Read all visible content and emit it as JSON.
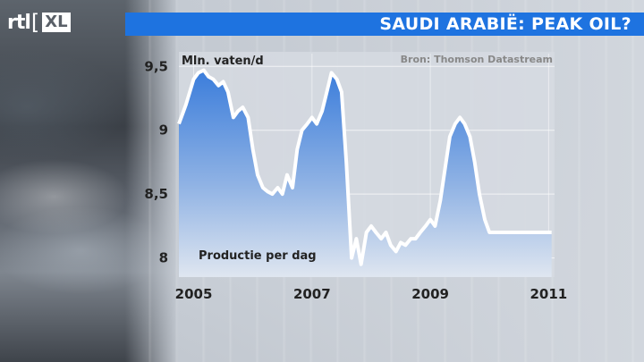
{
  "logo": {
    "brand": "rtl",
    "bracket": "[",
    "suffix": "XL"
  },
  "header": {
    "title": "SAUDI ARABIË: PEAK OIL?"
  },
  "chart_data": {
    "type": "area",
    "ylabel": "Mln. vaten/d",
    "source": "Bron: Thomson Datastream",
    "annotation": "Productie per dag",
    "y_ticks": [
      "9,5",
      "9",
      "8,5",
      "8"
    ],
    "x_ticks": [
      "2005",
      "2007",
      "2009",
      "2011"
    ],
    "ylim": [
      7.85,
      9.6
    ],
    "xlim": [
      2004.75,
      2011.1
    ],
    "grid": true,
    "colors": {
      "fill_top": "#4a86e0",
      "fill_bottom": "#e6ecf4",
      "line": "#ffffff",
      "grid": "#ffffff"
    },
    "series": [
      {
        "x": [
          2004.75,
          2004.87,
          2005.0,
          2005.08,
          2005.17,
          2005.25,
          2005.33,
          2005.42,
          2005.5,
          2005.58,
          2005.67,
          2005.75,
          2005.83,
          2005.92,
          2006.0,
          2006.08,
          2006.17,
          2006.25,
          2006.33,
          2006.42,
          2006.5,
          2006.58,
          2006.67,
          2006.75,
          2006.83,
          2006.92,
          2007.0,
          2007.08,
          2007.17,
          2007.25,
          2007.33,
          2007.42,
          2007.5,
          2007.58,
          2007.67,
          2007.75,
          2007.83,
          2007.92,
          2008.0,
          2008.08,
          2008.17,
          2008.25,
          2008.33,
          2008.42,
          2008.5,
          2008.58,
          2008.67,
          2008.75,
          2008.83,
          2008.92,
          2009.0,
          2009.08,
          2009.17,
          2009.25,
          2009.33,
          2009.42,
          2009.5,
          2009.58,
          2009.67,
          2009.75,
          2009.83,
          2009.92,
          2010.0,
          2010.08,
          2010.17,
          2010.25,
          2010.33,
          2010.42,
          2010.5,
          2010.58,
          2010.67,
          2010.75,
          2010.83,
          2010.92,
          2011.0,
          2011.05
        ],
        "y": [
          9.05,
          9.2,
          9.4,
          9.45,
          9.47,
          9.42,
          9.4,
          9.35,
          9.38,
          9.3,
          9.1,
          9.15,
          9.18,
          9.1,
          8.85,
          8.65,
          8.55,
          8.52,
          8.5,
          8.55,
          8.5,
          8.65,
          8.55,
          8.85,
          9.0,
          9.05,
          9.1,
          9.05,
          9.15,
          9.3,
          9.45,
          9.4,
          9.3,
          8.75,
          8.0,
          8.15,
          7.95,
          8.2,
          8.25,
          8.2,
          8.15,
          8.2,
          8.1,
          8.05,
          8.12,
          8.1,
          8.15,
          8.15,
          8.2,
          8.25,
          8.3,
          8.25,
          8.45,
          8.7,
          8.95,
          9.05,
          9.1,
          9.05,
          8.95,
          8.75,
          8.5,
          8.3,
          8.2,
          8.2,
          8.2,
          8.2,
          8.2,
          8.2,
          8.2,
          8.2,
          8.2,
          8.2,
          8.2,
          8.2,
          8.2,
          8.2
        ]
      }
    ]
  }
}
